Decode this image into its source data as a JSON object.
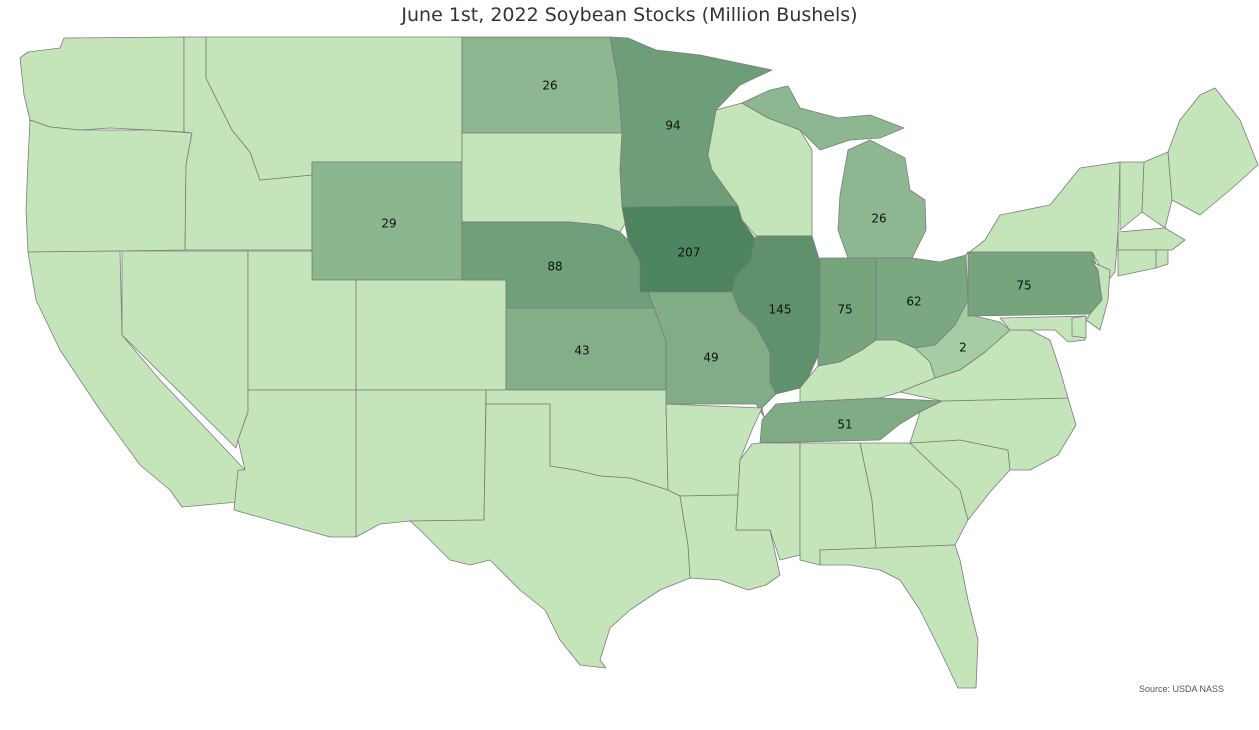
{
  "title": "June 1st, 2022 Soybean Stocks (Million Bushels)",
  "source": "Source: USDA NASS",
  "colors": {
    "base": "#c4e5ba",
    "scale": [
      "#c4e5ba",
      "#4e8460"
    ],
    "border": "#7b7b7b",
    "background": "#ffffff"
  },
  "map_data": {
    "metric": "Soybean stocks, million bushels",
    "states": [
      {
        "state": "North Dakota",
        "value": 26
      },
      {
        "state": "Minnesota",
        "value": 94
      },
      {
        "state": "Wyoming",
        "value": 29
      },
      {
        "state": "Nebraska",
        "value": 88
      },
      {
        "state": "Iowa",
        "value": 207
      },
      {
        "state": "Illinois",
        "value": 145
      },
      {
        "state": "Indiana",
        "value": 75
      },
      {
        "state": "Ohio",
        "value": 62
      },
      {
        "state": "Pennsylvania",
        "value": 75
      },
      {
        "state": "Michigan",
        "value": 26
      },
      {
        "state": "Kansas",
        "value": 43
      },
      {
        "state": "Missouri",
        "value": 49
      },
      {
        "state": "West Virginia",
        "value": 2
      },
      {
        "state": "Tennessee",
        "value": 51
      }
    ]
  }
}
